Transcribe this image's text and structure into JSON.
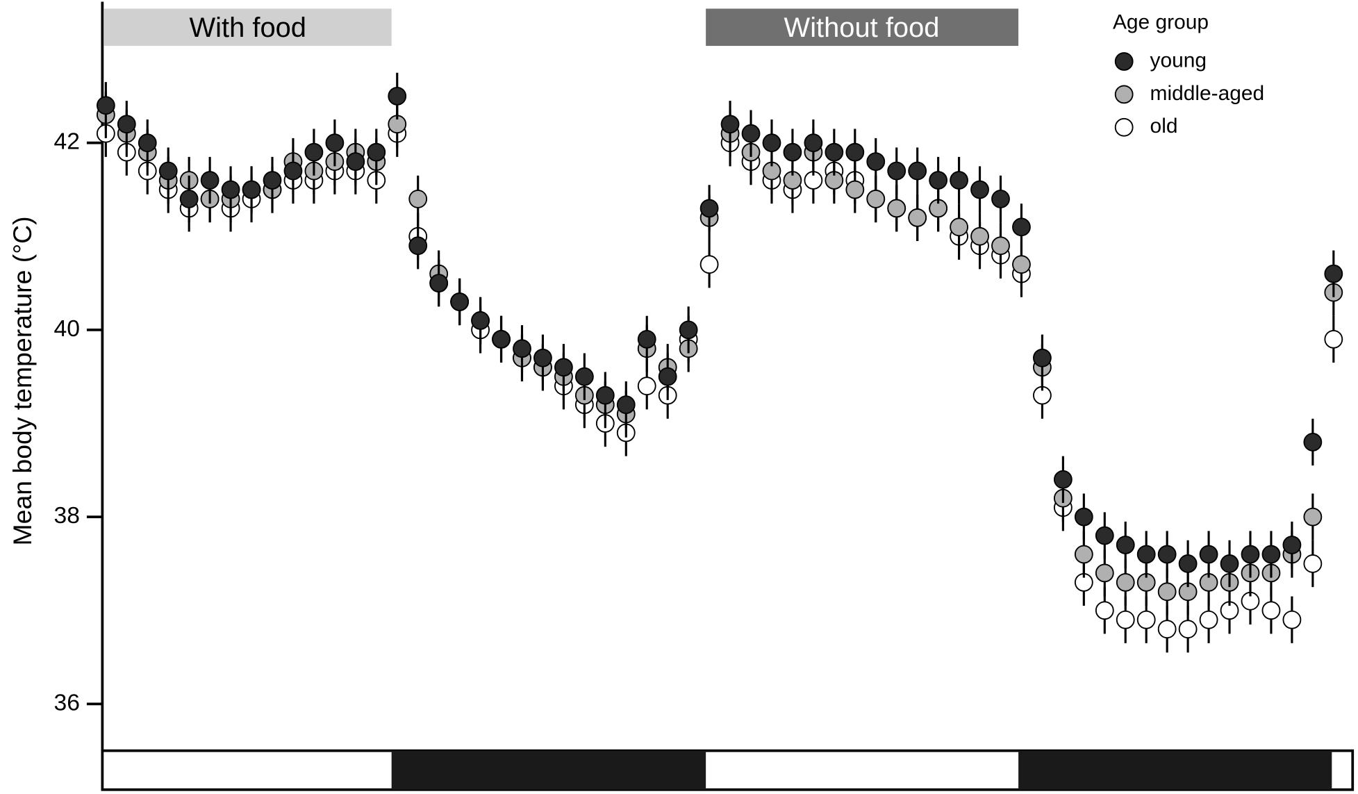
{
  "chart_data": {
    "type": "scatter",
    "y_label": "Mean body temperature (°C)",
    "annotations": [
      "With food",
      "Without food"
    ],
    "legend_title": "Age group",
    "legend_position": "top-right",
    "grid": false,
    "ylim": [
      35.5,
      43.5
    ],
    "yticks": [
      36,
      38,
      40,
      42
    ],
    "series": [
      {
        "name": "young",
        "color": "#2b2b2b",
        "error": 0.25,
        "values": [
          42.4,
          42.2,
          42.0,
          41.7,
          41.4,
          41.6,
          41.5,
          41.5,
          41.6,
          41.7,
          41.9,
          42.0,
          41.8,
          41.9,
          42.5,
          40.9,
          40.5,
          40.3,
          40.1,
          39.9,
          39.8,
          39.7,
          39.6,
          39.5,
          39.3,
          39.2,
          39.9,
          39.5,
          40.0,
          41.3,
          42.2,
          42.1,
          42.0,
          41.9,
          42.0,
          41.9,
          41.9,
          41.8,
          41.7,
          41.7,
          41.6,
          41.6,
          41.5,
          41.4,
          41.1,
          39.7,
          38.4,
          38.0,
          37.8,
          37.7,
          37.6,
          37.6,
          37.5,
          37.6,
          37.5,
          37.6,
          37.6,
          37.7,
          38.8,
          40.6
        ]
      },
      {
        "name": "middle-aged",
        "color": "#b0b0b0",
        "error": 0.25,
        "values": [
          42.3,
          42.1,
          41.9,
          41.6,
          41.6,
          41.4,
          41.4,
          41.5,
          41.5,
          41.8,
          41.7,
          41.8,
          41.9,
          41.8,
          42.2,
          41.4,
          40.6,
          40.3,
          40.1,
          39.9,
          39.7,
          39.6,
          39.5,
          39.3,
          39.2,
          39.1,
          39.8,
          39.6,
          39.8,
          41.2,
          42.1,
          41.9,
          41.7,
          41.6,
          41.9,
          41.6,
          41.5,
          41.4,
          41.3,
          41.2,
          41.3,
          41.1,
          41.0,
          40.9,
          40.7,
          39.6,
          38.2,
          37.6,
          37.4,
          37.3,
          37.3,
          37.2,
          37.2,
          37.3,
          37.3,
          37.4,
          37.4,
          37.6,
          38.0,
          40.4
        ]
      },
      {
        "name": "old",
        "color": "#ffffff",
        "error": 0.25,
        "values": [
          42.1,
          41.9,
          41.7,
          41.5,
          41.3,
          41.4,
          41.3,
          41.4,
          41.5,
          41.6,
          41.6,
          41.7,
          41.7,
          41.6,
          42.1,
          41.0,
          40.5,
          40.3,
          40.0,
          39.9,
          39.7,
          39.6,
          39.4,
          39.2,
          39.0,
          38.9,
          39.4,
          39.3,
          39.9,
          40.7,
          42.0,
          41.8,
          41.6,
          41.5,
          41.6,
          41.7,
          41.6,
          41.4,
          41.3,
          41.2,
          41.3,
          41.0,
          40.9,
          40.8,
          40.6,
          39.3,
          38.1,
          37.3,
          37.0,
          36.9,
          36.9,
          36.8,
          36.8,
          36.9,
          37.0,
          37.1,
          37.0,
          36.9,
          37.5,
          39.9
        ]
      }
    ]
  }
}
